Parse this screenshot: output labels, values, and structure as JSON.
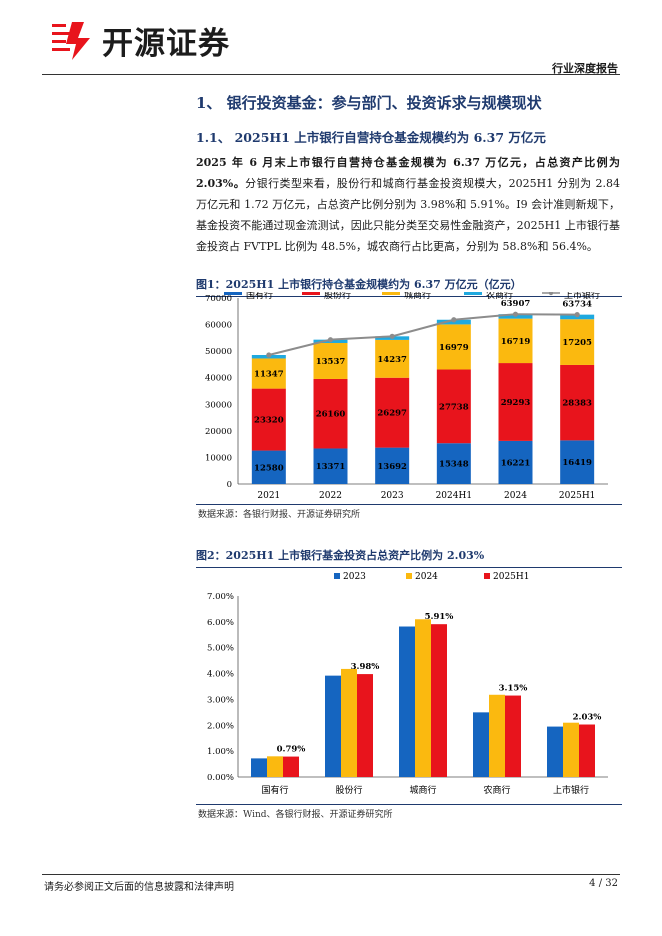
{
  "header": {
    "logo_text": "开源证券",
    "report_type": "行业深度报告"
  },
  "section": {
    "h1": "1、 银行投资基金：参与部门、投资诉求与规模现状",
    "h2": "1.1、 2025H1 上市银行自营持仓基金规模约为 6.37 万亿元"
  },
  "paragraph": {
    "lead": "2025 年 6 月末上市银行自营持仓基金规模为 6.37 万亿元，占总资产比例为 2.03%。",
    "body": "分银行类型来看，股份行和城商行基金投资规模大，2025H1 分别为 2.84 万亿元和 1.72 万亿元，占总资产比例分别为 3.98%和 5.91%。I9 会计准则新规下，基金投资不能通过现金流测试，因此只能分类至交易性金融资产，2025H1 上市银行基金投资占 FVTPL 比例为 48.5%，城农商行占比更高，分别为 58.8%和 56.4%。"
  },
  "figure1": {
    "title": "图1：2025H1 上市银行持仓基金规模约为 6.37 万亿元（亿元）",
    "source": "数据来源：各银行财报、开源证券研究所"
  },
  "figure2": {
    "title": "图2：2025H1 上市银行基金投资占总资产比例为 2.03%",
    "source": "数据来源：Wind、各银行财报、开源证券研究所"
  },
  "chart_data": [
    {
      "type": "bar",
      "stacked": true,
      "title": "2025H1 上市银行持仓基金规模约为 6.37 万亿元（亿元）",
      "categories": [
        "2021",
        "2022",
        "2023",
        "2024H1",
        "2024",
        "2025H1"
      ],
      "series": [
        {
          "name": "国有行",
          "color": "#1565c0",
          "values": [
            12580,
            13371,
            13692,
            15348,
            16221,
            16419
          ]
        },
        {
          "name": "股份行",
          "color": "#e8141c",
          "values": [
            23320,
            26160,
            26297,
            27738,
            29293,
            28383
          ]
        },
        {
          "name": "城商行",
          "color": "#fbb90f",
          "values": [
            11347,
            13537,
            14237,
            16979,
            16719,
            17205
          ]
        },
        {
          "name": "农商行",
          "color": "#1fa9df",
          "values": [
            1300,
            1250,
            1350,
            1750,
            1674,
            1727
          ]
        }
      ],
      "line": {
        "name": "上市银行",
        "color": "#8c8c8c",
        "values": [
          48547,
          54318,
          55576,
          61815,
          63907,
          63734
        ]
      },
      "line_labels": [
        {
          "category": "2024",
          "text": "63907"
        },
        {
          "category": "2025H1",
          "text": "63734"
        }
      ],
      "ylim": [
        0,
        70000
      ],
      "yticks": [
        "0",
        "10000",
        "20000",
        "30000",
        "40000",
        "50000",
        "60000",
        "70000"
      ],
      "legend": "top"
    },
    {
      "type": "bar",
      "title": "2025H1 上市银行基金投资占总资产比例为 2.03%",
      "categories": [
        "国有行",
        "股份行",
        "城商行",
        "农商行",
        "上市银行"
      ],
      "series": [
        {
          "name": "2023",
          "color": "#1565c0",
          "values": [
            0.72,
            3.92,
            5.82,
            2.5,
            1.95
          ]
        },
        {
          "name": "2024",
          "color": "#fbb90f",
          "values": [
            0.8,
            4.18,
            6.1,
            3.18,
            2.1
          ]
        },
        {
          "name": "2025H1",
          "color": "#e8141c",
          "values": [
            0.79,
            3.98,
            5.91,
            3.15,
            2.03
          ]
        }
      ],
      "labels": [
        "0.79%",
        "3.98%",
        "5.91%",
        "3.15%",
        "2.03%"
      ],
      "ylim": [
        0,
        7
      ],
      "yticks": [
        "0.00%",
        "1.00%",
        "2.00%",
        "3.00%",
        "4.00%",
        "5.00%",
        "6.00%",
        "7.00%"
      ],
      "legend": "top"
    }
  ],
  "footer": {
    "disclaimer": "请务必参阅正文后面的信息披露和法律声明",
    "page": "4 / 32"
  }
}
